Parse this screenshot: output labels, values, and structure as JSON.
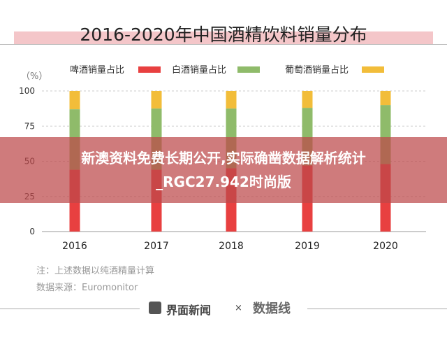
{
  "chart_data": {
    "type": "bar",
    "stacked": true,
    "title": "2016-2020年中国酒精饮料销量分布",
    "ylabel": "（%）",
    "ylim": [
      0,
      100
    ],
    "yticks": [
      0,
      25,
      50,
      75,
      100
    ],
    "grid": true,
    "legend_placement": "top",
    "categories": [
      "2016",
      "2017",
      "2018",
      "2019",
      "2020"
    ],
    "series": [
      {
        "name": "啤酒销量占比",
        "color": "#e84040",
        "values": [
          44,
          44,
          45,
          47,
          48
        ]
      },
      {
        "name": "白酒销量占比",
        "color": "#8fbb6a",
        "values": [
          43,
          43.5,
          42.5,
          41,
          42
        ]
      },
      {
        "name": "葡萄酒销量占比",
        "color": "#f2bd3a",
        "values": [
          13,
          12.5,
          12.5,
          12,
          10
        ]
      }
    ]
  },
  "notes": {
    "note": "注：上述数据以纯酒精量计算",
    "source": "数据来源：Euromonitor"
  },
  "footer": {
    "brand1": "界面新闻",
    "separator": "×",
    "brand2": "数据线"
  },
  "banner": {
    "text": "新澳资料免费长期公开,实际确凿数据解析统计_RGC27.942时尚版"
  }
}
